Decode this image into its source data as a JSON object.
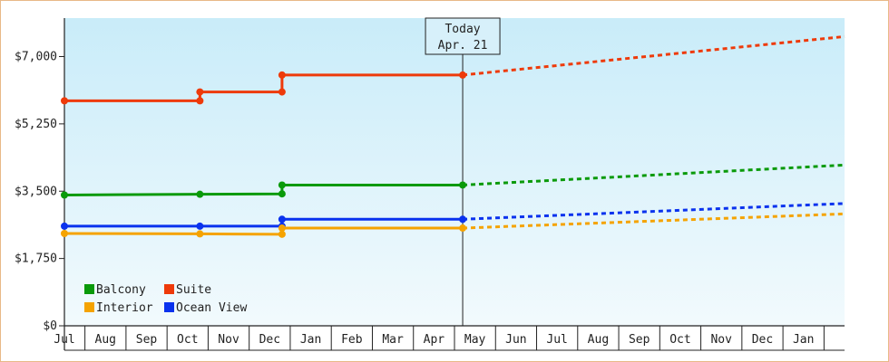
{
  "chart_data": {
    "type": "line",
    "title": "",
    "xlabel": "",
    "ylabel": "",
    "ylim": [
      0,
      8000
    ],
    "y_ticks": [
      0,
      1750,
      3500,
      5250,
      7000
    ],
    "y_tick_labels": [
      "$0",
      "$1,750",
      "$3,500",
      "$5,250",
      "$7,000"
    ],
    "month_labels": [
      "Jul",
      "Aug",
      "Sep",
      "Oct",
      "Nov",
      "Dec",
      "Jan",
      "Feb",
      "Mar",
      "Apr",
      "May",
      "Jun",
      "Jul",
      "Aug",
      "Sep",
      "Oct",
      "Nov",
      "Dec",
      "Jan"
    ],
    "today": {
      "title": "Today",
      "date": "Apr. 21",
      "month": 9.7
    },
    "x_range": [
      0,
      19
    ],
    "background": "light blue gradient",
    "legend": {
      "placement": "bottom-left"
    },
    "series": [
      {
        "name": "Balcony",
        "color": "#0a9a0a",
        "history": [
          [
            0,
            3400
          ],
          [
            3.3,
            3420
          ],
          [
            5.3,
            3430
          ],
          [
            5.3,
            3660
          ],
          [
            9.7,
            3660
          ]
        ],
        "projection": [
          [
            9.7,
            3660
          ],
          [
            19,
            4180
          ]
        ]
      },
      {
        "name": "Suite",
        "color": "#ee3a0a",
        "history": [
          [
            0,
            5850
          ],
          [
            3.3,
            5850
          ],
          [
            3.3,
            6080
          ],
          [
            5.3,
            6080
          ],
          [
            5.3,
            6520
          ],
          [
            9.7,
            6520
          ]
        ],
        "projection": [
          [
            9.7,
            6520
          ],
          [
            19,
            7520
          ]
        ]
      },
      {
        "name": "Interior",
        "color": "#f5a300",
        "history": [
          [
            0,
            2400
          ],
          [
            3.3,
            2390
          ],
          [
            5.3,
            2380
          ],
          [
            5.3,
            2540
          ],
          [
            9.7,
            2540
          ]
        ],
        "projection": [
          [
            9.7,
            2540
          ],
          [
            19,
            2910
          ]
        ]
      },
      {
        "name": "Ocean View",
        "color": "#0a32ee",
        "history": [
          [
            0,
            2590
          ],
          [
            3.3,
            2590
          ],
          [
            5.3,
            2590
          ],
          [
            5.3,
            2770
          ],
          [
            9.7,
            2770
          ]
        ],
        "projection": [
          [
            9.7,
            2770
          ],
          [
            19,
            3180
          ]
        ]
      }
    ]
  }
}
